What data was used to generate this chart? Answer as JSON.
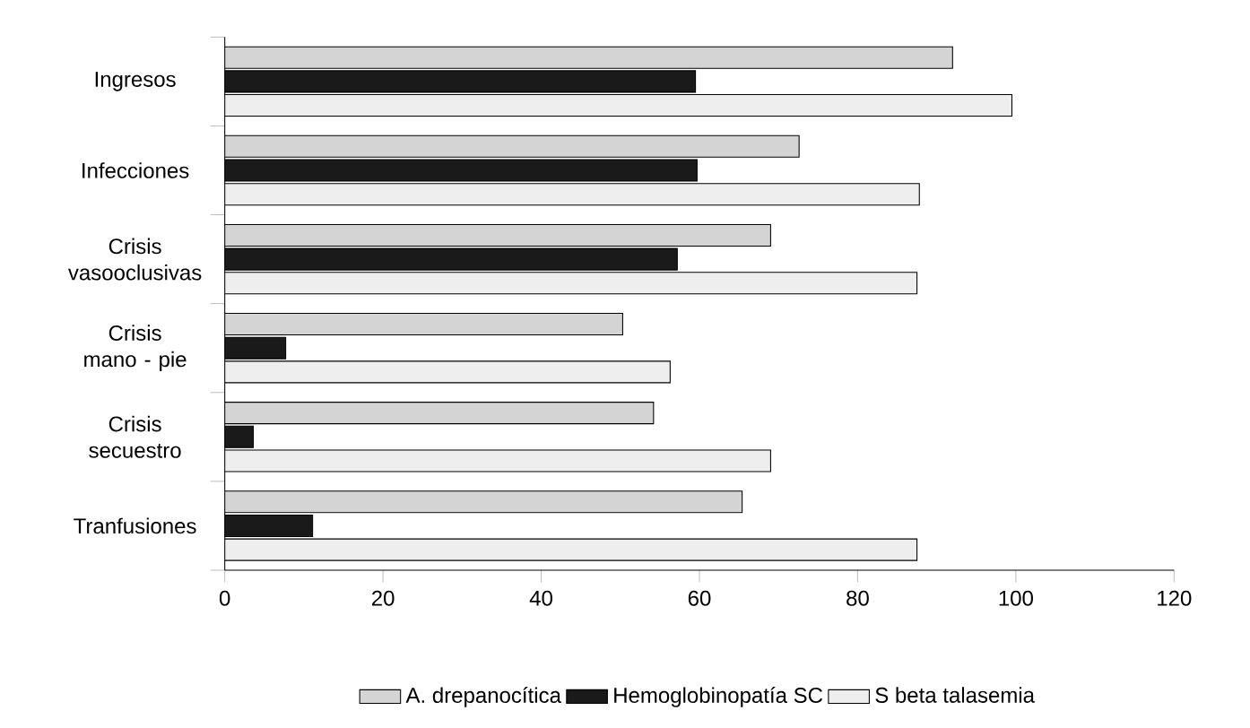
{
  "chart_data": {
    "type": "bar",
    "orientation": "horizontal",
    "categories": [
      "Ingresos",
      "Infecciones",
      "Crisis vasooclusivas",
      "Crisis mano - pie",
      "Crisis secuestro",
      "Tranfusiones"
    ],
    "series": [
      {
        "name": "A. drepanocítica",
        "color": "#d4d4d4",
        "values": [
          92,
          72.6,
          69,
          50.3,
          54.2,
          65.4
        ]
      },
      {
        "name": "Hemoglobinopatía SC",
        "color": "#1a1a1a",
        "values": [
          59.5,
          59.7,
          57.2,
          7.7,
          3.6,
          11.1
        ]
      },
      {
        "name": "S beta talasemia",
        "color": "#eeeeee",
        "values": [
          99.5,
          87.8,
          87.5,
          56.3,
          69,
          87.5
        ]
      }
    ],
    "xlim": [
      0,
      120
    ],
    "xticks": [
      0,
      20,
      40,
      60,
      80,
      100,
      120
    ],
    "grid": false,
    "legend": "bottom"
  }
}
